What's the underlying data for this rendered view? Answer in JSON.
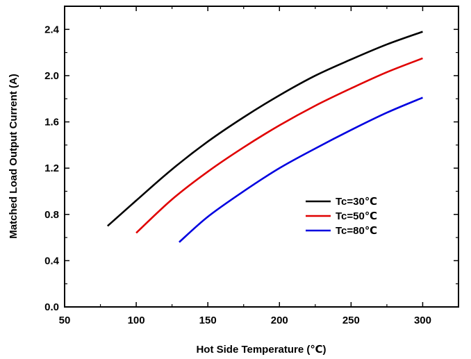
{
  "chart_data": {
    "type": "line",
    "title": "",
    "xlabel": "Hot Side Temperature (℃)",
    "ylabel": "Matched Load Output Current (A)",
    "xlim": [
      50,
      325
    ],
    "ylim": [
      0.0,
      2.6
    ],
    "xticks": [
      "50",
      "100",
      "150",
      "200",
      "250",
      "300"
    ],
    "yticks": [
      "0.0",
      "0.4",
      "0.8",
      "1.2",
      "1.6",
      "2.0",
      "2.4"
    ],
    "grid": false,
    "legend_position": "center-right",
    "series": [
      {
        "name": "Tc=30℃",
        "color": "#000000",
        "x": [
          80,
          100,
          125,
          150,
          175,
          200,
          225,
          250,
          275,
          300
        ],
        "y": [
          0.7,
          0.92,
          1.19,
          1.43,
          1.64,
          1.83,
          2.0,
          2.14,
          2.27,
          2.38
        ]
      },
      {
        "name": "Tc=50℃",
        "color": "#e00000",
        "x": [
          100,
          125,
          150,
          175,
          200,
          225,
          250,
          275,
          300
        ],
        "y": [
          0.64,
          0.93,
          1.17,
          1.38,
          1.57,
          1.74,
          1.89,
          2.03,
          2.15
        ]
      },
      {
        "name": "Tc=80℃",
        "color": "#0000e0",
        "x": [
          130,
          150,
          175,
          200,
          225,
          250,
          275,
          300
        ],
        "y": [
          0.56,
          0.78,
          1.0,
          1.2,
          1.37,
          1.53,
          1.68,
          1.81
        ]
      }
    ]
  }
}
